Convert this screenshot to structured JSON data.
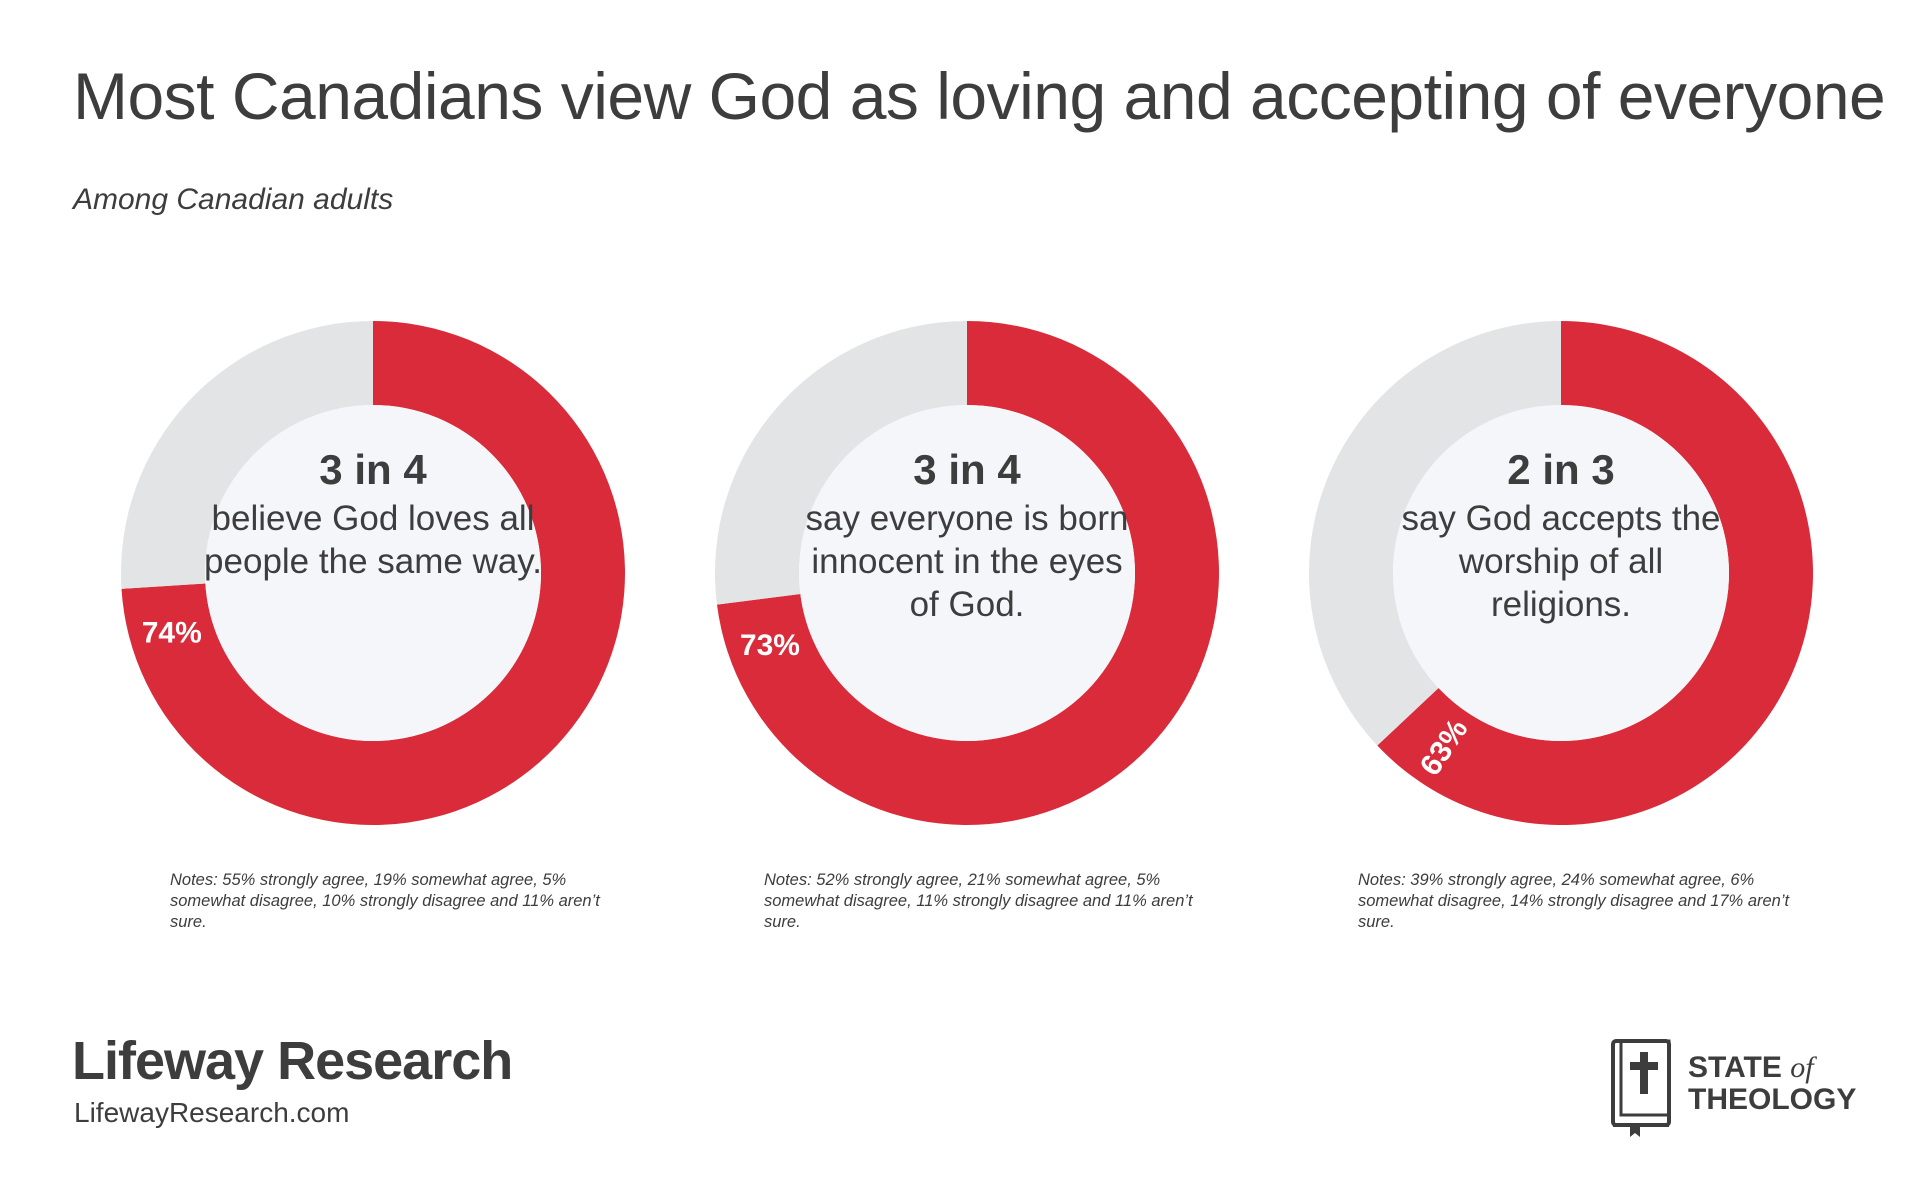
{
  "title": "Most Canadians view God as loving and accepting of everyone",
  "subtitle": "Among Canadian adults",
  "colors": {
    "accent": "#d92b3a",
    "remainder": "#e3e4e6",
    "center": "#f4f6f9",
    "text": "#3d3d3d"
  },
  "chart_data": [
    {
      "type": "pie",
      "values": [
        74,
        26
      ],
      "percent_label": "74%",
      "headline": "3 in 4",
      "statement": "believe God loves all people the same way.",
      "notes": "Notes: 55% strongly agree, 19% somewhat agree, 5% somewhat disagree, 10% strongly disagree and 11% aren’t sure."
    },
    {
      "type": "pie",
      "values": [
        73,
        27
      ],
      "percent_label": "73%",
      "headline": "3 in 4",
      "statement": "say everyone is born innocent in the eyes of God.",
      "notes": "Notes: 52% strongly agree, 21% somewhat agree, 5% somewhat disagree, 11% strongly disagree and 11% aren’t sure."
    },
    {
      "type": "pie",
      "values": [
        63,
        37
      ],
      "percent_label": "63%",
      "headline": "2 in 3",
      "statement": "say God accepts the worship of all religions.",
      "notes": "Notes: 39% strongly agree, 24% somewhat agree, 6% somewhat disagree, 14% strongly disagree and 17% aren’t sure."
    }
  ],
  "footer": {
    "brand": "Lifeway Research",
    "url": "LifewayResearch.com",
    "logo_line1": "STATE",
    "logo_of": "of",
    "logo_line2": "THEOLOGY",
    "logo_icon": "bible-cross-icon"
  }
}
